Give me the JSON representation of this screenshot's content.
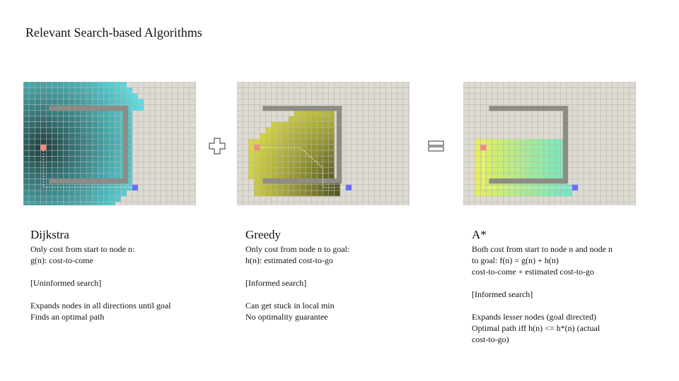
{
  "title": "Relevant Search-based Algorithms",
  "colors": {
    "grid_bg": "#dedbd3",
    "grid_line": "#b9b6ae",
    "wall": "#8f8c85",
    "start": "#f28b82",
    "goal": "#6b6ef0",
    "dijkstra_frontier": "#5fe8ee",
    "greedy_frontier": "#d6d646",
    "astar_near": "#e8f05a",
    "astar_far": "#6fe6c8"
  },
  "operators": {
    "plus": "plus-icon",
    "equals": "equals-icon"
  },
  "columns": [
    {
      "heading": "Dijkstra",
      "lines": [
        "Only cost from start to node n:",
        "g(n): cost-to-come",
        "",
        "[Uninformed search]",
        "",
        "Expands nodes in all directions until goal",
        "Finds an optimal path"
      ]
    },
    {
      "heading": "Greedy",
      "lines": [
        "Only cost from node n to goal:",
        "h(n): estimated cost-to-go",
        "",
        "[Informed search]",
        "",
        "Can get stuck in local min",
        "No optimality guarantee"
      ]
    },
    {
      "heading": "A*",
      "lines": [
        "Both cost from start to node n and node n",
        "to goal: f(n) = g(n) + h(n)",
        "cost-to-come + estimated cost-to-go",
        "",
        "[Informed search]",
        "",
        "Expands lesser nodes (goal directed)",
        "Optimal path iff h(n) <= h*(n) (actual",
        "cost-to-go)"
      ]
    }
  ]
}
